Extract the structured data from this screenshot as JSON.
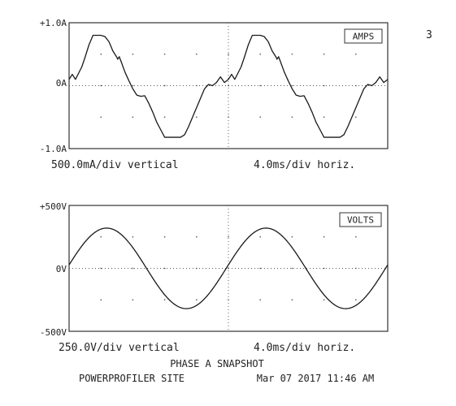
{
  "page_mark": "3",
  "chart_data": [
    {
      "type": "line",
      "tag": "AMPS",
      "unit": "A",
      "ylim": [
        -1.0,
        1.0
      ],
      "xlim": [
        0,
        40
      ],
      "y_ticks": [
        {
          "value": 1.0,
          "label": "+1.0A"
        },
        {
          "value": 0.0,
          "label": "0A"
        },
        {
          "value": -1.0,
          "label": "-1.0A"
        }
      ],
      "vertical_scale": "500.0mA/div vertical",
      "horizontal_scale": "4.0ms/div horiz.",
      "x": [
        0,
        0.4,
        0.8,
        1.2,
        1.6,
        2.0,
        2.5,
        3.0,
        3.5,
        4.0,
        4.5,
        5.0,
        5.5,
        6.0,
        6.1,
        6.3,
        6.6,
        7.0,
        7.5,
        8.0,
        8.5,
        9.0,
        9.5,
        10.0,
        10.5,
        11.0,
        11.5,
        12.0,
        12.5,
        13.0,
        13.5,
        14.0,
        14.5,
        15.0,
        15.5,
        16.0,
        16.5,
        17.0,
        17.5,
        18.0,
        18.5,
        19.0,
        19.5,
        20.0,
        20.4,
        20.8,
        21.2,
        21.6,
        22.0,
        22.5,
        23.0,
        23.5,
        24.0,
        24.5,
        25.0,
        25.5,
        26.0,
        26.1,
        26.3,
        26.6,
        27.0,
        27.5,
        28.0,
        28.5,
        29.0,
        29.5,
        30.0,
        30.5,
        31.0,
        31.5,
        32.0,
        32.5,
        33.0,
        33.5,
        34.0,
        34.5,
        35.0,
        35.5,
        36.0,
        36.5,
        37.0,
        37.5,
        38.0,
        38.5,
        39.0,
        39.5,
        40.0
      ],
      "values": [
        0.1,
        0.18,
        0.1,
        0.2,
        0.3,
        0.45,
        0.65,
        0.8,
        0.8,
        0.8,
        0.78,
        0.7,
        0.55,
        0.45,
        0.42,
        0.46,
        0.36,
        0.22,
        0.08,
        -0.05,
        -0.15,
        -0.17,
        -0.16,
        -0.28,
        -0.42,
        -0.58,
        -0.7,
        -0.82,
        -0.82,
        -0.82,
        -0.82,
        -0.82,
        -0.78,
        -0.65,
        -0.5,
        -0.35,
        -0.2,
        -0.05,
        0.02,
        0.0,
        0.05,
        0.14,
        0.05,
        0.1,
        0.18,
        0.1,
        0.2,
        0.3,
        0.45,
        0.65,
        0.8,
        0.8,
        0.8,
        0.78,
        0.7,
        0.55,
        0.45,
        0.42,
        0.46,
        0.36,
        0.22,
        0.08,
        -0.05,
        -0.15,
        -0.17,
        -0.16,
        -0.28,
        -0.42,
        -0.58,
        -0.7,
        -0.82,
        -0.82,
        -0.82,
        -0.82,
        -0.82,
        -0.78,
        -0.65,
        -0.5,
        -0.35,
        -0.2,
        -0.05,
        0.02,
        0.0,
        0.05,
        0.14,
        0.05,
        0.1
      ]
    },
    {
      "type": "line",
      "tag": "VOLTS",
      "unit": "V",
      "ylim": [
        -500,
        500
      ],
      "xlim": [
        0,
        40
      ],
      "y_ticks": [
        {
          "value": 500,
          "label": "+500V"
        },
        {
          "value": 0,
          "label": "0V"
        },
        {
          "value": -500,
          "label": "-500V"
        }
      ],
      "vertical_scale": "250.0V/div vertical",
      "horizontal_scale": "4.0ms/div horiz.",
      "sine": {
        "amplitude": 320,
        "period_ms": 20,
        "phase_deg": 5,
        "samples": 240
      }
    }
  ],
  "footer": {
    "title": "PHASE A SNAPSHOT",
    "site": "POWERPROFILER SITE",
    "timestamp": "Mar 07 2017 11:46 AM"
  }
}
